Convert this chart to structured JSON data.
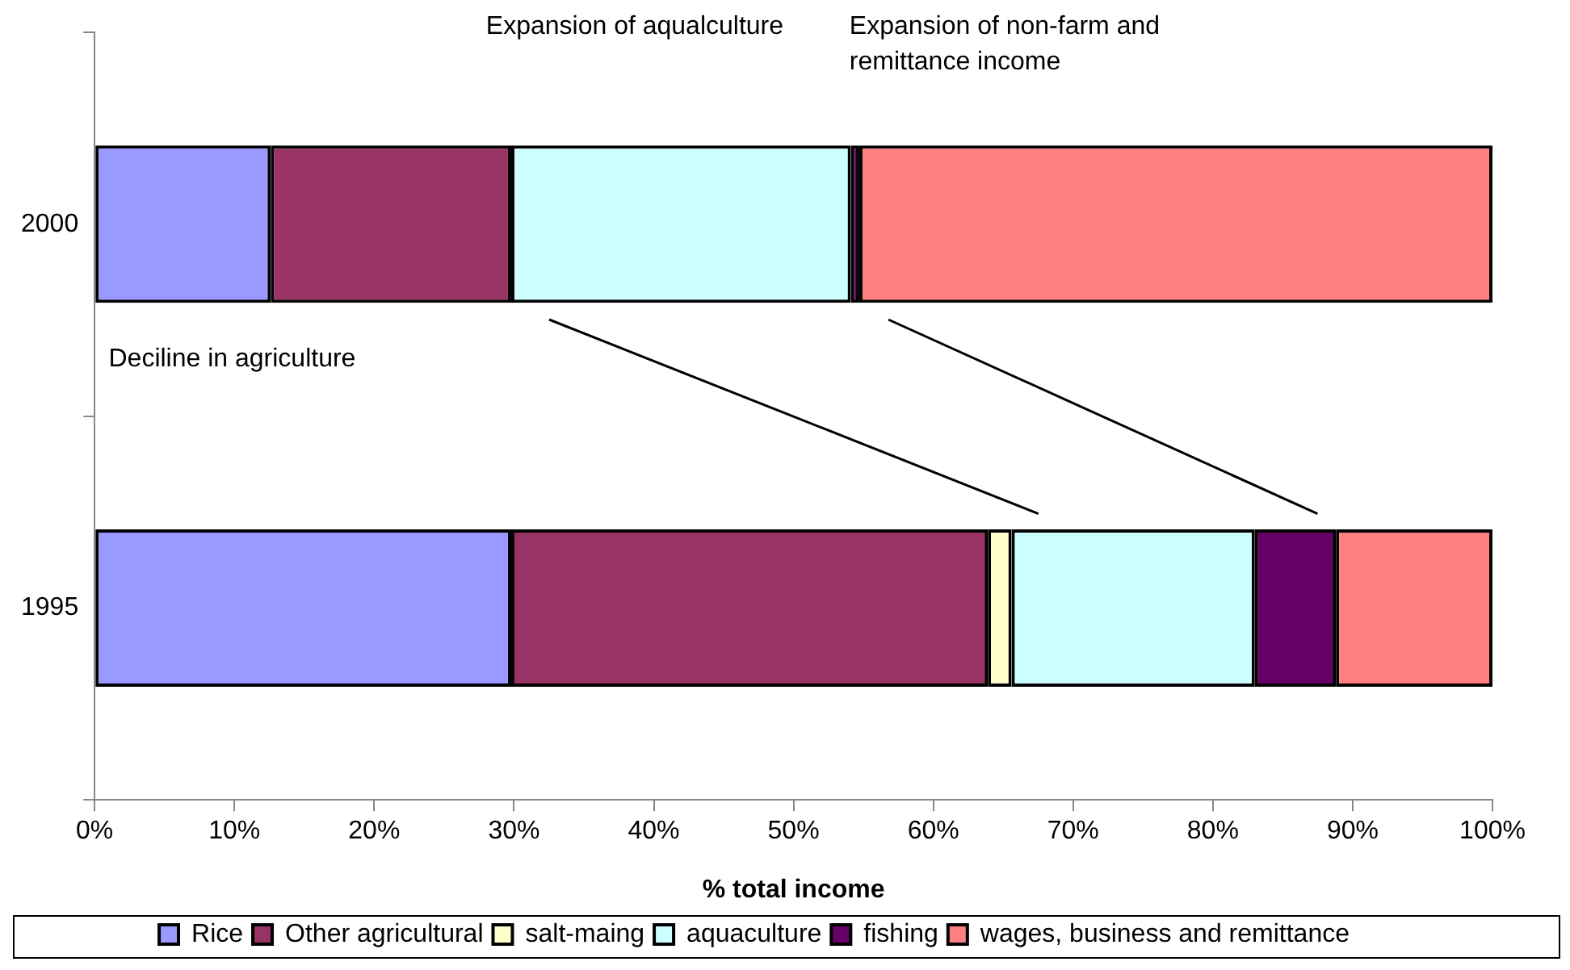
{
  "chart_data": {
    "type": "bar",
    "orientation": "horizontal",
    "stacked": true,
    "categories": [
      "2000",
      "1995"
    ],
    "series": [
      {
        "name": "Rice",
        "color": "#9999ff",
        "values": [
          12.6,
          29.8
        ]
      },
      {
        "name": "Other agricultural",
        "color": "#993366",
        "values": [
          17.2,
          34.1
        ]
      },
      {
        "name": "salt-maing",
        "color": "#ffffcc",
        "values": [
          0,
          1.7
        ]
      },
      {
        "name": "aquaculture",
        "color": "#ccffff",
        "values": [
          24.3,
          17.4
        ]
      },
      {
        "name": "fishing",
        "color": "#660066",
        "values": [
          0.6,
          5.8
        ]
      },
      {
        "name": "wages, business and remittance",
        "color": "#ff8080",
        "values": [
          45.3,
          11.2
        ]
      }
    ],
    "xlim": [
      0,
      100
    ],
    "xticks": [
      {
        "value": 0,
        "label": "0%"
      },
      {
        "value": 10,
        "label": "10%"
      },
      {
        "value": 20,
        "label": "20%"
      },
      {
        "value": 30,
        "label": "30%"
      },
      {
        "value": 40,
        "label": "40%"
      },
      {
        "value": 50,
        "label": "50%"
      },
      {
        "value": 60,
        "label": "60%"
      },
      {
        "value": 70,
        "label": "70%"
      },
      {
        "value": 80,
        "label": "80%"
      },
      {
        "value": 90,
        "label": "90%"
      },
      {
        "value": 100,
        "label": "100%"
      }
    ],
    "xlabel": "% total income",
    "grid": false,
    "legend": "bottom",
    "annotations": [
      "Expansion of aqualculture",
      "Expansion of non-farm and remittance income",
      "Deciline in agriculture"
    ]
  }
}
